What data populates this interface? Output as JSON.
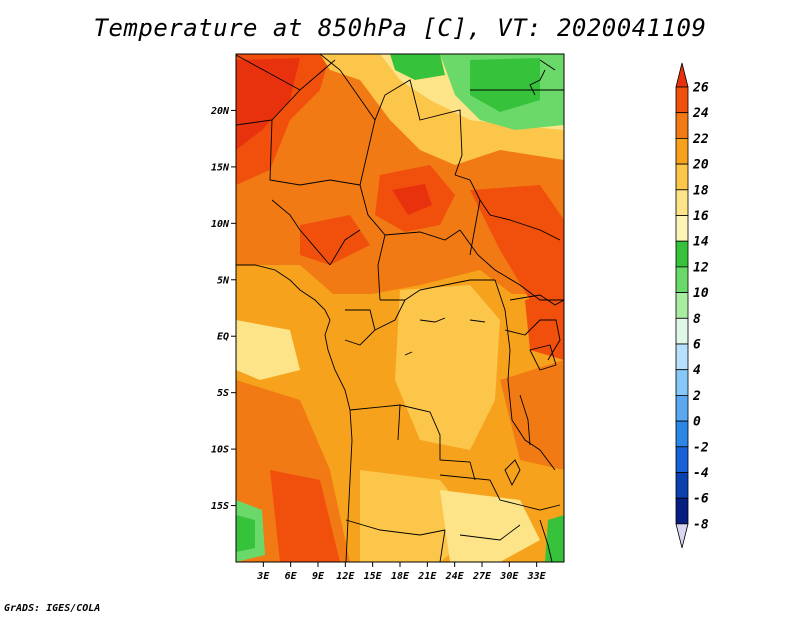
{
  "title": "Temperature at 850hPa [C], VT: 2020041109",
  "footer": "GrADS: IGES/COLA",
  "map": {
    "lon_range": [
      0,
      36
    ],
    "lat_range": [
      -20,
      25
    ],
    "lat_ticks": [
      {
        "value": 20,
        "label": "20N"
      },
      {
        "value": 15,
        "label": "15N"
      },
      {
        "value": 10,
        "label": "10N"
      },
      {
        "value": 5,
        "label": "5N"
      },
      {
        "value": 0,
        "label": "EQ"
      },
      {
        "value": -5,
        "label": "5S"
      },
      {
        "value": -10,
        "label": "10S"
      },
      {
        "value": -15,
        "label": "15S"
      }
    ],
    "lon_ticks": [
      {
        "value": 3,
        "label": "3E"
      },
      {
        "value": 6,
        "label": "6E"
      },
      {
        "value": 9,
        "label": "9E"
      },
      {
        "value": 12,
        "label": "12E"
      },
      {
        "value": 15,
        "label": "15E"
      },
      {
        "value": 18,
        "label": "18E"
      },
      {
        "value": 21,
        "label": "21E"
      },
      {
        "value": 24,
        "label": "24E"
      },
      {
        "value": 27,
        "label": "27E"
      },
      {
        "value": 30,
        "label": "30E"
      },
      {
        "value": 33,
        "label": "33E"
      }
    ]
  },
  "colorbar": {
    "levels": [
      {
        "value": "26",
        "color": "#e8320e"
      },
      {
        "value": "24",
        "color": "#f0500c"
      },
      {
        "value": "22",
        "color": "#f27a14"
      },
      {
        "value": "20",
        "color": "#f6a21c"
      },
      {
        "value": "18",
        "color": "#fbc64a"
      },
      {
        "value": "16",
        "color": "#fde488"
      },
      {
        "value": "14",
        "color": "#fdf5b8"
      },
      {
        "value": "12",
        "color": "#37c23b"
      },
      {
        "value": "10",
        "color": "#6ad96a"
      },
      {
        "value": "8",
        "color": "#a9eda0"
      },
      {
        "value": "6",
        "color": "#e0f8e8"
      },
      {
        "value": "4",
        "color": "#b6e0fb"
      },
      {
        "value": "2",
        "color": "#86c8f7"
      },
      {
        "value": "0",
        "color": "#5aa8f0"
      },
      {
        "value": "-2",
        "color": "#2b86e6"
      },
      {
        "value": "-4",
        "color": "#1662d6"
      },
      {
        "value": "-6",
        "color": "#0b40b0"
      },
      {
        "value": "-8",
        "color": "#061e80"
      }
    ],
    "top_arrow_color": "#e8320e",
    "bottom_arrow_color": "#d8d8f2"
  }
}
